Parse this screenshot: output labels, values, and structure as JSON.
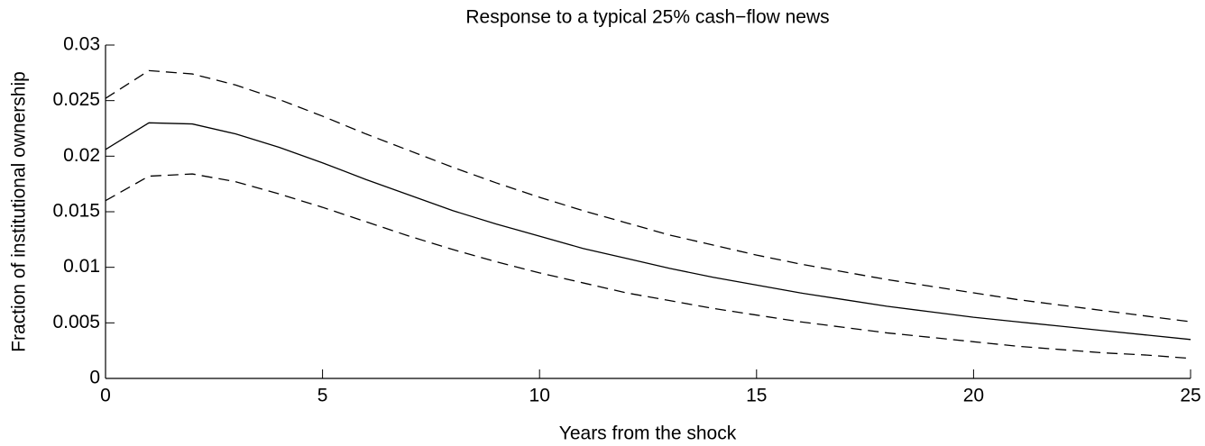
{
  "chart_data": {
    "type": "line",
    "title": "Response to a typical 25% cash−flow news",
    "x_label": "Years from the shock",
    "y_label": "Fraction of institutional ownership",
    "x": [
      0,
      1,
      2,
      3,
      4,
      5,
      6,
      7,
      8,
      9,
      10,
      11,
      12,
      13,
      14,
      15,
      16,
      17,
      18,
      19,
      20,
      21,
      22,
      23,
      24,
      25
    ],
    "series": [
      {
        "color": "#000000",
        "style": "solid",
        "values": [
          0.0206,
          0.023,
          0.0229,
          0.022,
          0.0208,
          0.0194,
          0.0179,
          0.0165,
          0.0151,
          0.0139,
          0.0128,
          0.0117,
          0.0108,
          0.0099,
          0.0091,
          0.0084,
          0.0077,
          0.0071,
          0.0065,
          0.006,
          0.0055,
          0.0051,
          0.0047,
          0.0043,
          0.0039,
          0.0035
        ]
      },
      {
        "color": "#000000",
        "style": "dashed",
        "values": [
          0.0252,
          0.0277,
          0.0274,
          0.0264,
          0.0251,
          0.0236,
          0.022,
          0.0205,
          0.019,
          0.0176,
          0.0163,
          0.0151,
          0.014,
          0.0129,
          0.012,
          0.0111,
          0.0103,
          0.0096,
          0.0089,
          0.0083,
          0.0077,
          0.0071,
          0.0066,
          0.0061,
          0.0056,
          0.0051
        ]
      },
      {
        "color": "#000000",
        "style": "dashed",
        "values": [
          0.016,
          0.0182,
          0.0184,
          0.0177,
          0.0166,
          0.0154,
          0.0141,
          0.0128,
          0.0116,
          0.0105,
          0.0095,
          0.0086,
          0.0077,
          0.007,
          0.0063,
          0.0057,
          0.0051,
          0.0046,
          0.0041,
          0.0037,
          0.0033,
          0.0029,
          0.0026,
          0.0023,
          0.0021,
          0.0018
        ]
      }
    ],
    "xlim": [
      0,
      25
    ],
    "xticks": [
      0,
      5,
      10,
      15,
      20,
      25
    ],
    "ylim": [
      0,
      0.03
    ],
    "yticks": [
      0,
      0.005,
      0.01,
      0.015,
      0.02,
      0.025,
      0.03
    ],
    "grid": false
  }
}
